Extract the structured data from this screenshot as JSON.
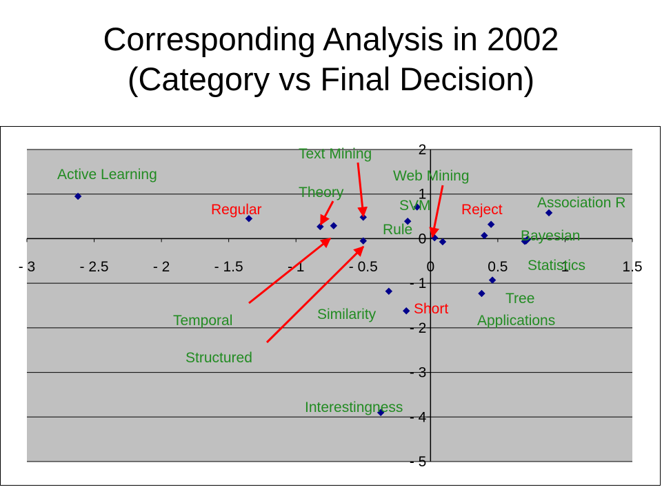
{
  "title": {
    "line1": "Corresponding Analysis in 2002",
    "line2": "(Category vs Final Decision)"
  },
  "colors": {
    "plot_background": "#c0c0c0",
    "marker": "#00008b",
    "category_label": "#228b22",
    "decision_label": "#ff0000",
    "arrow": "#ff0000"
  },
  "chart_data": {
    "type": "scatter",
    "title": "",
    "xlabel": "",
    "ylabel": "",
    "xlim": [
      -3,
      1.5
    ],
    "ylim": [
      -5,
      2
    ],
    "x_ticks": [
      -3,
      -2.5,
      -2,
      -1.5,
      -1,
      -0.5,
      0,
      0.5,
      1,
      1.5
    ],
    "y_ticks": [
      2,
      1,
      0,
      -1,
      -2,
      -3,
      -4,
      -5
    ],
    "x_tick_labels": [
      "- 3",
      "- 2.5",
      "- 2",
      "- 1.5",
      "- 1",
      "- 0.5",
      "0",
      "0.5",
      "1",
      "1.5"
    ],
    "y_tick_labels": [
      "2",
      "1",
      "0",
      "- 1",
      "- 2",
      "- 3",
      "- 4",
      "- 5"
    ],
    "grid": true,
    "gridlines": "horizontal",
    "legend": "none",
    "points": [
      {
        "x": -2.62,
        "y": 0.95
      },
      {
        "x": -1.35,
        "y": 0.45
      },
      {
        "x": -0.82,
        "y": 0.27
      },
      {
        "x": -0.72,
        "y": 0.29
      },
      {
        "x": -0.5,
        "y": 0.48
      },
      {
        "x": -0.5,
        "y": -0.05
      },
      {
        "x": -0.17,
        "y": 0.39
      },
      {
        "x": -0.1,
        "y": 0.71
      },
      {
        "x": 0.03,
        "y": 0.02
      },
      {
        "x": 0.09,
        "y": -0.07
      },
      {
        "x": 0.4,
        "y": 0.07
      },
      {
        "x": 0.45,
        "y": 0.32
      },
      {
        "x": 0.7,
        "y": -0.06
      },
      {
        "x": 0.71,
        "y": -0.05
      },
      {
        "x": 0.72,
        "y": -0.02
      },
      {
        "x": 0.88,
        "y": 0.58
      },
      {
        "x": 0.46,
        "y": -0.93
      },
      {
        "x": 0.38,
        "y": -1.23
      },
      {
        "x": -0.31,
        "y": -1.18
      },
      {
        "x": -0.18,
        "y": -1.62
      },
      {
        "x": -0.37,
        "y": -3.9
      }
    ],
    "annotations": [
      {
        "text": "Active Learning",
        "role": "category"
      },
      {
        "text": "Regular",
        "role": "decision"
      },
      {
        "text": "Theory",
        "role": "category"
      },
      {
        "text": "Text Mining",
        "role": "category"
      },
      {
        "text": "Web Mining",
        "role": "category"
      },
      {
        "text": "SVM",
        "role": "category"
      },
      {
        "text": "Rule",
        "role": "category"
      },
      {
        "text": "Reject",
        "role": "decision"
      },
      {
        "text": "Association R",
        "role": "category"
      },
      {
        "text": "Bayesian",
        "role": "category"
      },
      {
        "text": "Statistics",
        "role": "category"
      },
      {
        "text": "Tree",
        "role": "category"
      },
      {
        "text": "Applications",
        "role": "category"
      },
      {
        "text": "Short",
        "role": "decision"
      },
      {
        "text": "Similarity",
        "role": "category"
      },
      {
        "text": "Temporal",
        "role": "category"
      },
      {
        "text": "Structured",
        "role": "category"
      },
      {
        "text": "Interestingness",
        "role": "category"
      }
    ]
  }
}
